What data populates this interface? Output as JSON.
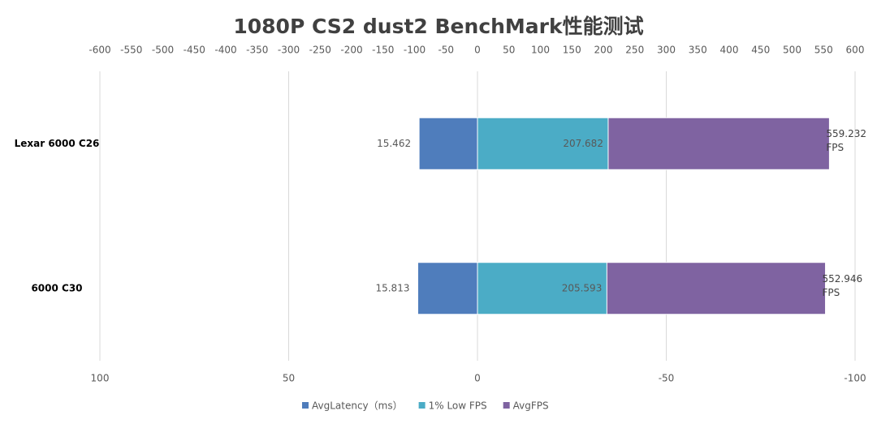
{
  "chart_data": {
    "type": "bar",
    "orientation": "horizontal",
    "title": "1080P CS2 dust2 BenchMark性能测试",
    "categories": [
      "Lexar 6000 C26",
      "6000 C30"
    ],
    "xlim": [
      -600,
      600
    ],
    "xticks": [
      -600,
      -550,
      -500,
      -450,
      -400,
      -350,
      -300,
      -250,
      -200,
      -150,
      -100,
      -50,
      0,
      50,
      100,
      150,
      200,
      250,
      300,
      350,
      400,
      450,
      500,
      550,
      600
    ],
    "x2lim": [
      100,
      -100
    ],
    "x2ticks": [
      100,
      50,
      0,
      -50,
      -100
    ],
    "grid": true,
    "legend": "bottom",
    "series": [
      {
        "name": "AvgLatency（ms）",
        "color": "#4f7dbc",
        "axis": "x2",
        "values": [
          15.462,
          15.813
        ]
      },
      {
        "name": "1% Low FPS",
        "color": "#4bacc6",
        "values": [
          207.682,
          205.593
        ]
      },
      {
        "name": "AvgFPS",
        "color": "#7f63a1",
        "values": [
          559.232,
          552.946
        ],
        "value_labels": [
          "559.232 FPS",
          "552.946 FPS"
        ]
      }
    ]
  }
}
